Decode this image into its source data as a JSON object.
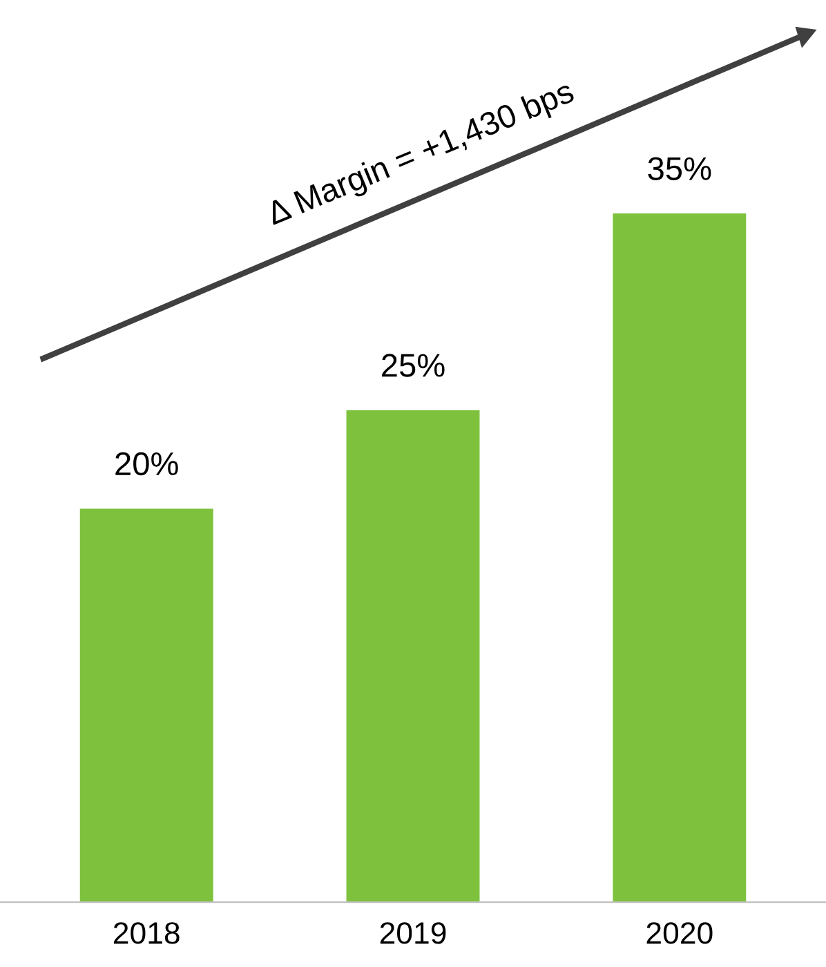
{
  "chart_data": {
    "type": "bar",
    "categories": [
      "2018",
      "2019",
      "2020"
    ],
    "values": [
      20,
      25,
      35
    ],
    "color": "#7dc13c",
    "data_labels": true,
    "value_labels": [
      "20%",
      "25%",
      "35%"
    ],
    "annotations": [
      "Δ Margin = +1,430 bps"
    ],
    "grid": false,
    "legend": false
  }
}
